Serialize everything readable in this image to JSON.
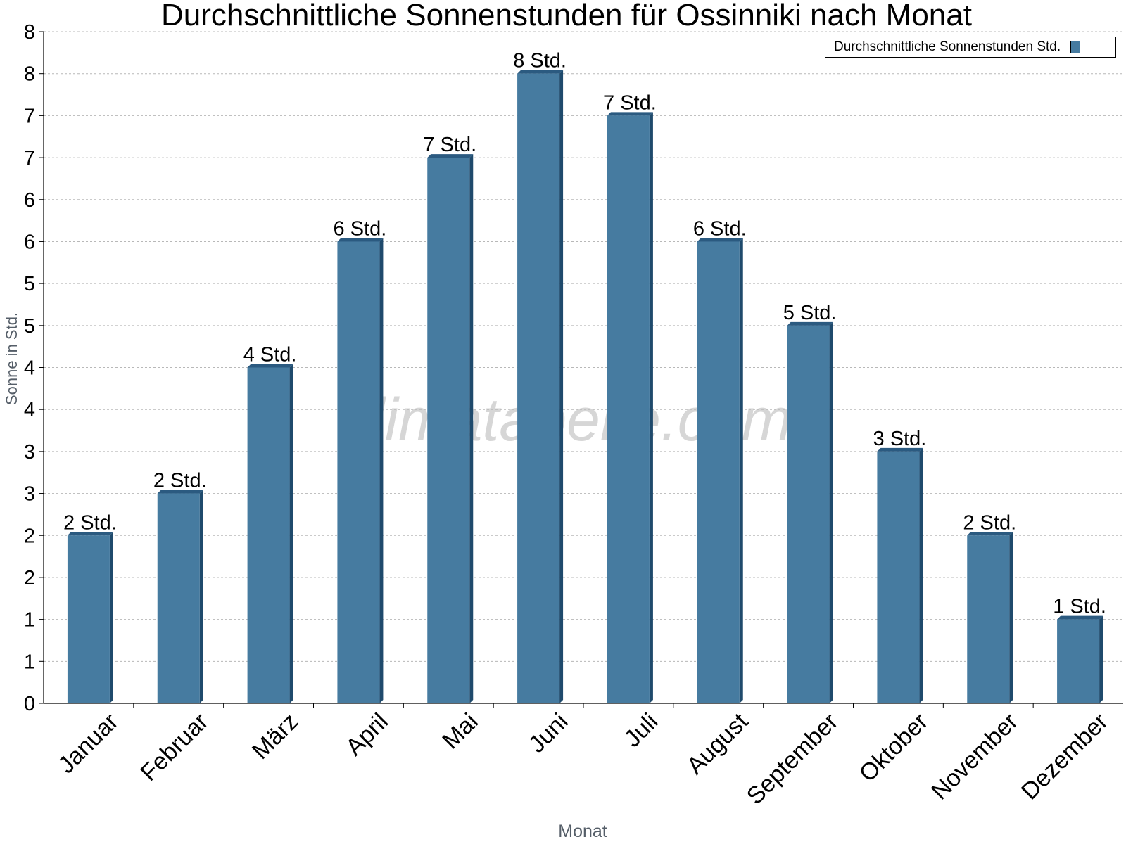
{
  "chart_data": {
    "type": "bar",
    "title": "Durchschnittliche Sonnenstunden für Ossinniki nach Monat",
    "xlabel": "Monat",
    "ylabel": "Sonne in Std.",
    "categories": [
      "Januar",
      "Februar",
      "März",
      "April",
      "Mai",
      "Juni",
      "Juli",
      "August",
      "September",
      "Oktober",
      "November",
      "Dezember"
    ],
    "series": [
      {
        "name": "Durchschnittliche Sonnenstunden Std.",
        "values": [
          2.0,
          2.5,
          4.0,
          5.5,
          6.5,
          7.5,
          7.0,
          5.5,
          4.5,
          3.0,
          2.0,
          1.0
        ],
        "labels": [
          "2 Std.",
          "2 Std.",
          "4 Std.",
          "6 Std.",
          "7 Std.",
          "8 Std.",
          "7 Std.",
          "6 Std.",
          "5 Std.",
          "3 Std.",
          "2 Std.",
          "1 Std."
        ]
      }
    ],
    "ylim": [
      0,
      8
    ],
    "yticks": [
      0,
      0.5,
      1,
      1.5,
      2,
      2.5,
      3,
      3.5,
      4,
      4.5,
      5,
      5.5,
      6,
      6.5,
      7,
      7.5,
      8
    ],
    "ytick_labels": [
      "0",
      "1",
      "1",
      "2",
      "2",
      "3",
      "3",
      "4",
      "4",
      "5",
      "5",
      "6",
      "6",
      "7",
      "7",
      "8",
      "8"
    ],
    "grid": true,
    "legend_position": "top-right",
    "watermark": "klimatabelle.com",
    "colors": {
      "bar": "#467ba0",
      "bar_side": "#1f4a6c",
      "bar_top": "#2b5a80",
      "grid": "#b8b8b8",
      "axis": "#000000",
      "label_gray": "#555e68",
      "watermark": "#c8c8c8"
    }
  }
}
